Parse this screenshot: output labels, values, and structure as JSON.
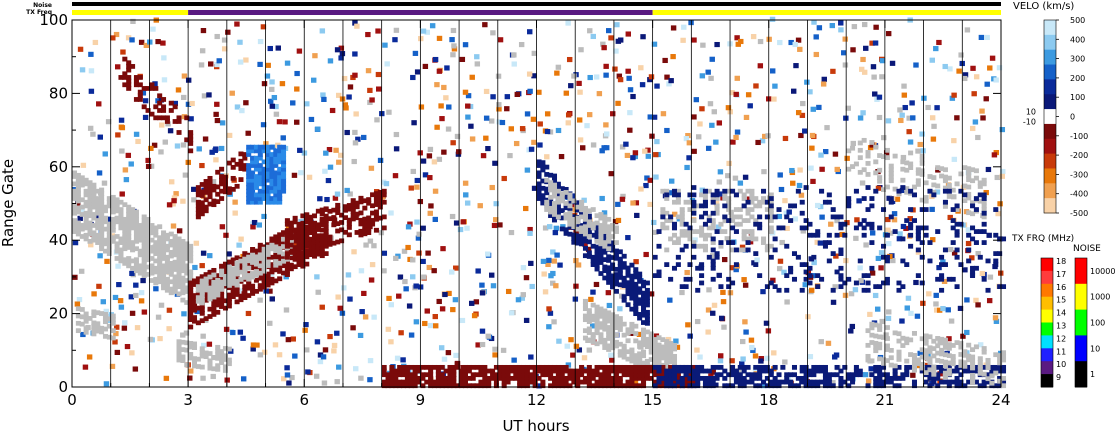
{
  "chart_data": {
    "type": "heatmap",
    "title": "",
    "xlabel": "UT hours",
    "ylabel": "Range Gate",
    "xlim": [
      0,
      24
    ],
    "ylim": [
      0,
      100
    ],
    "xticks": [
      "0",
      "3",
      "6",
      "9",
      "12",
      "15",
      "18",
      "21",
      "24"
    ],
    "yticks": [
      "0",
      "20",
      "40",
      "60",
      "80",
      "100"
    ],
    "grid": false,
    "top_bars": {
      "noise_label": "Noise",
      "txfreq_label": "TX Freq",
      "noise_color": "#000000",
      "txfreq_segments": [
        {
          "start": 0,
          "end": 3,
          "color": "#ffff00"
        },
        {
          "start": 3,
          "end": 15,
          "color": "#5a1a82"
        },
        {
          "start": 15,
          "end": 24,
          "color": "#ffff00"
        }
      ]
    },
    "scan_boundaries_ut": [
      1,
      2,
      3,
      4,
      5,
      6,
      7,
      8,
      9,
      10,
      11,
      12,
      13,
      14,
      15,
      16,
      17,
      18,
      19,
      20,
      21,
      22,
      23
    ],
    "velocity_colorbar": {
      "title": "VELO (km/s)",
      "ticks": [
        "500",
        "400",
        "300",
        "200",
        "100",
        "0",
        "-100",
        "-200",
        "-300",
        "-400",
        "-500"
      ],
      "threshold_labels": [
        "10",
        "-10"
      ],
      "colors": [
        "#c8e8f8",
        "#8ccaf0",
        "#3c9ae0",
        "#1460c8",
        "#0a2a9a",
        "#0a1878",
        "#ffffff",
        "#7a0a0a",
        "#a01010",
        "#c83a0a",
        "#e8780a",
        "#f0a050",
        "#f8d2a8"
      ]
    },
    "txfreq_colorbar": {
      "title": "TX FRQ (MHz)",
      "ticks": [
        "18",
        "17",
        "16",
        "15",
        "14",
        "13",
        "12",
        "11",
        "10",
        "9"
      ],
      "colors": [
        "#ff0000",
        "#ff3c3c",
        "#ff7800",
        "#ffbe00",
        "#ffff00",
        "#00ff00",
        "#00e0ff",
        "#2020ff",
        "#5a1a82",
        "#000000"
      ]
    },
    "noise_colorbar": {
      "title": "NOISE",
      "ticks": [
        "10000",
        "1000",
        "100",
        "10",
        "1"
      ],
      "colors": [
        "#ff0000",
        "#ffff00",
        "#00ff00",
        "#0000ff",
        "#000000"
      ]
    },
    "ground_scatter_color": "#bcbcbc",
    "features": [
      {
        "name": "ground scatter band",
        "t0": 0.0,
        "t1": 3.0,
        "g0": 50,
        "g1": 30,
        "width": 8,
        "color": "#bcbcbc",
        "density": 0.75
      },
      {
        "name": "ground scatter low",
        "t0": 0.1,
        "t1": 1.0,
        "g0": 18,
        "g1": 16,
        "width": 3,
        "color": "#bcbcbc",
        "density": 0.6
      },
      {
        "name": "ground scatter low 2",
        "t0": 2.7,
        "t1": 4.0,
        "g0": 9,
        "g1": 7,
        "width": 3,
        "color": "#bcbcbc",
        "density": 0.5
      },
      {
        "name": "negative velocity arc",
        "t0": 3.0,
        "t1": 6.5,
        "g0": 22,
        "g1": 42,
        "width": 6,
        "color": "#7a0a0a",
        "density": 0.7
      },
      {
        "name": "ground scatter on arc",
        "t0": 3.2,
        "t1": 5.6,
        "g0": 25,
        "g1": 38,
        "width": 3,
        "color": "#bcbcbc",
        "density": 0.7
      },
      {
        "name": "negative velocity mid",
        "t0": 5.5,
        "t1": 8.0,
        "g0": 40,
        "g1": 48,
        "width": 5,
        "color": "#7a0a0a",
        "density": 0.55
      },
      {
        "name": "negative velocity early",
        "t0": 3.2,
        "t1": 4.4,
        "g0": 50,
        "g1": 60,
        "width": 4,
        "color": "#7a0a0a",
        "density": 0.5
      },
      {
        "name": "positive velocity patch",
        "t0": 4.5,
        "t1": 5.4,
        "g0": 50,
        "g1": 65,
        "width": 0,
        "color": "#2a8ae8",
        "density": 0.85
      },
      {
        "name": "upper scatter trail",
        "t0": 1.2,
        "t1": 3.0,
        "g0": 86,
        "g1": 68,
        "width": 4,
        "color": "#7a0a0a",
        "density": 0.35
      },
      {
        "name": "positive velocity descending",
        "t0": 12.0,
        "t1": 14.8,
        "g0": 56,
        "g1": 22,
        "width": 6,
        "color": "#0a1a78",
        "density": 0.7
      },
      {
        "name": "ground scatter descending",
        "t0": 12.2,
        "t1": 14.0,
        "g0": 52,
        "g1": 40,
        "width": 4,
        "color": "#bcbcbc",
        "density": 0.55
      },
      {
        "name": "ground scatter lower arc",
        "t0": 13.2,
        "t1": 15.5,
        "g0": 18,
        "g1": 6,
        "width": 5,
        "color": "#bcbcbc",
        "density": 0.7
      },
      {
        "name": "near range negative band",
        "t0": 8.0,
        "t1": 16.0,
        "g0": 2,
        "g1": 2,
        "width": 3,
        "color": "#7a0a0a",
        "density": 0.8
      },
      {
        "name": "near range positive band",
        "t0": 15.0,
        "t1": 24.0,
        "g0": 2,
        "g1": 2,
        "width": 3,
        "color": "#0a1a78",
        "density": 0.6
      },
      {
        "name": "ground scatter late",
        "t0": 15.2,
        "t1": 18.0,
        "g0": 45,
        "g1": 45,
        "width": 8,
        "color": "#bcbcbc",
        "density": 0.3
      },
      {
        "name": "ground scatter late 2",
        "t0": 20.0,
        "t1": 23.5,
        "g0": 62,
        "g1": 52,
        "width": 6,
        "color": "#bcbcbc",
        "density": 0.25
      },
      {
        "name": "ground scatter late low",
        "t0": 20.5,
        "t1": 24.0,
        "g0": 12,
        "g1": 4,
        "width": 5,
        "color": "#bcbcbc",
        "density": 0.35
      },
      {
        "name": "late velocity mixed",
        "t0": 15.0,
        "t1": 24.0,
        "g0": 40,
        "g1": 40,
        "width": 14,
        "color": "#0a1a78",
        "density": 0.12
      }
    ]
  }
}
